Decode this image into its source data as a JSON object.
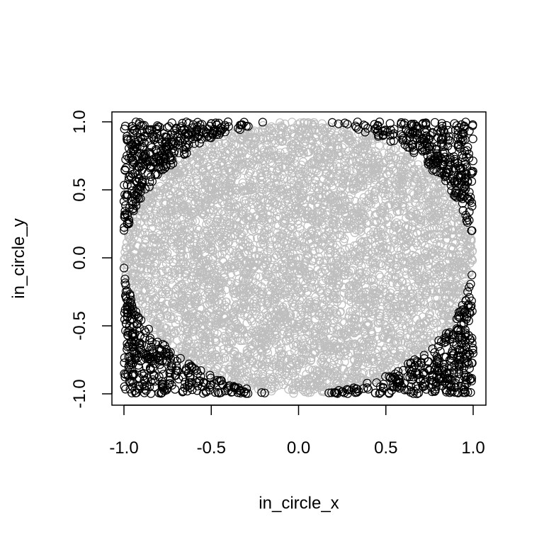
{
  "chart_data": {
    "type": "scatter",
    "title": "",
    "xlabel": "in_circle_x",
    "ylabel": "in_circle_y",
    "xlim": [
      -1.0,
      1.0
    ],
    "ylim": [
      -1.0,
      1.0
    ],
    "x_ticks": [
      "-1.0",
      "-0.5",
      "0.0",
      "0.5",
      "1.0"
    ],
    "y_ticks": [
      "-1.0",
      "-0.5",
      "0.0",
      "0.5",
      "1.0"
    ],
    "grid": false,
    "legend": "none",
    "series": [
      {
        "color": "#bebebe",
        "marker": "open-circle",
        "region": "inside unit circle (x^2 + y^2 <= 1)",
        "sample_points": [
          [
            0.0,
            0.0
          ],
          [
            0.5,
            0.5
          ],
          [
            -0.5,
            0.5
          ],
          [
            0.5,
            -0.5
          ],
          [
            -0.5,
            -0.5
          ],
          [
            0.9,
            0.0
          ],
          [
            -0.9,
            0.0
          ],
          [
            0.0,
            0.95
          ],
          [
            0.0,
            -0.95
          ],
          [
            0.3,
            -0.7
          ]
        ]
      },
      {
        "color": "#000000",
        "marker": "open-circle",
        "region": "outside unit circle (x^2 + y^2 > 1)",
        "sample_points": [
          [
            0.95,
            0.95
          ],
          [
            -0.95,
            0.95
          ],
          [
            0.95,
            -0.95
          ],
          [
            -0.95,
            -0.95
          ],
          [
            0.8,
            0.75
          ],
          [
            -0.8,
            0.75
          ],
          [
            0.8,
            -0.75
          ],
          [
            -0.8,
            -0.75
          ],
          [
            0.99,
            0.2
          ],
          [
            -0.99,
            -0.2
          ]
        ]
      }
    ]
  }
}
